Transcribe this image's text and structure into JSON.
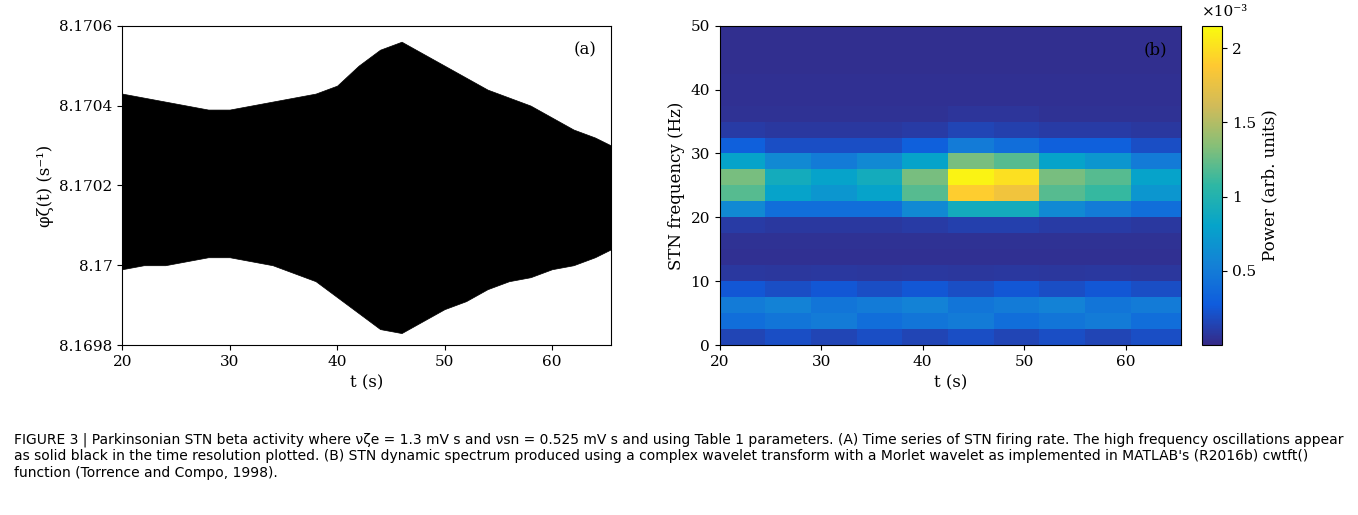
{
  "chart_data": [
    {
      "type": "area",
      "panel_label": "(a)",
      "x_label": "t (s)",
      "y_label": "φζ(t) (s⁻¹)",
      "color": "#000000",
      "x": [
        20,
        22,
        24,
        26,
        28,
        30,
        32,
        34,
        36,
        38,
        40,
        42,
        44,
        46,
        48,
        50,
        52,
        54,
        56,
        58,
        60,
        62,
        64,
        65.5
      ],
      "upper": [
        8.17043,
        8.17042,
        8.17041,
        8.1704,
        8.17039,
        8.17039,
        8.1704,
        8.17041,
        8.17042,
        8.17043,
        8.17045,
        8.1705,
        8.17054,
        8.17056,
        8.17053,
        8.1705,
        8.17047,
        8.17044,
        8.17042,
        8.1704,
        8.17037,
        8.17034,
        8.17032,
        8.1703
      ],
      "lower": [
        8.16999,
        8.17,
        8.17,
        8.17001,
        8.17002,
        8.17002,
        8.17001,
        8.17,
        8.16998,
        8.16996,
        8.16992,
        8.16988,
        8.16984,
        8.16983,
        8.16986,
        8.16989,
        8.16991,
        8.16994,
        8.16996,
        8.16997,
        8.16999,
        8.17,
        8.17002,
        8.17004
      ],
      "xlim": [
        20,
        65.5
      ],
      "xticks": [
        20,
        30,
        40,
        50,
        60
      ],
      "ylim": [
        8.1698,
        8.1706
      ],
      "yticks": [
        8.1698,
        8.17,
        8.1702,
        8.1704,
        8.1706
      ]
    },
    {
      "type": "heatmap",
      "panel_label": "(b)",
      "x_label": "t (s)",
      "y_label": "STN frequency (Hz)",
      "colorbar_label": "Power (arb. units)",
      "colorbar_multiplier": "×10⁻³",
      "time_edges": [
        20,
        24.5,
        29,
        33.5,
        38,
        42.5,
        47,
        51.5,
        56,
        60.5,
        65.5
      ],
      "freq_edges": [
        0,
        2.5,
        5,
        7.5,
        10,
        12.5,
        15,
        17.5,
        20,
        22.5,
        25,
        27.5,
        30,
        32.5,
        35,
        37.5,
        40,
        42.5,
        45,
        47.5,
        50
      ],
      "power": [
        [
          0.15,
          0.2,
          0.15,
          0.2,
          0.15,
          0.2,
          0.15,
          0.2,
          0.15,
          0.2
        ],
        [
          0.4,
          0.45,
          0.5,
          0.4,
          0.45,
          0.5,
          0.4,
          0.45,
          0.5,
          0.4
        ],
        [
          0.5,
          0.55,
          0.45,
          0.5,
          0.55,
          0.45,
          0.5,
          0.55,
          0.45,
          0.5
        ],
        [
          0.25,
          0.2,
          0.25,
          0.2,
          0.25,
          0.2,
          0.25,
          0.2,
          0.25,
          0.2
        ],
        [
          0.08,
          0.07,
          0.08,
          0.07,
          0.08,
          0.07,
          0.08,
          0.07,
          0.08,
          0.07
        ],
        [
          0.04,
          0.04,
          0.04,
          0.04,
          0.04,
          0.04,
          0.04,
          0.04,
          0.04,
          0.04
        ],
        [
          0.05,
          0.05,
          0.05,
          0.05,
          0.05,
          0.05,
          0.05,
          0.05,
          0.05,
          0.05
        ],
        [
          0.1,
          0.08,
          0.08,
          0.08,
          0.1,
          0.12,
          0.12,
          0.1,
          0.1,
          0.08
        ],
        [
          0.6,
          0.4,
          0.4,
          0.4,
          0.6,
          0.9,
          0.9,
          0.6,
          0.5,
          0.4
        ],
        [
          1.2,
          0.8,
          0.7,
          0.8,
          1.2,
          1.9,
          1.8,
          1.2,
          1.1,
          0.7
        ],
        [
          1.3,
          0.9,
          0.8,
          0.9,
          1.3,
          2.1,
          2.0,
          1.3,
          1.2,
          0.8
        ],
        [
          0.8,
          0.6,
          0.5,
          0.6,
          0.8,
          1.3,
          1.2,
          0.8,
          0.7,
          0.5
        ],
        [
          0.3,
          0.2,
          0.2,
          0.2,
          0.3,
          0.5,
          0.4,
          0.3,
          0.3,
          0.2
        ],
        [
          0.1,
          0.08,
          0.08,
          0.08,
          0.1,
          0.15,
          0.12,
          0.1,
          0.1,
          0.08
        ],
        [
          0.05,
          0.05,
          0.05,
          0.05,
          0.05,
          0.06,
          0.06,
          0.05,
          0.05,
          0.05
        ],
        [
          0.04,
          0.04,
          0.04,
          0.04,
          0.04,
          0.04,
          0.04,
          0.04,
          0.04,
          0.04
        ],
        [
          0.04,
          0.04,
          0.04,
          0.04,
          0.04,
          0.04,
          0.04,
          0.04,
          0.04,
          0.04
        ],
        [
          0.03,
          0.03,
          0.03,
          0.03,
          0.03,
          0.03,
          0.03,
          0.03,
          0.03,
          0.03
        ],
        [
          0.03,
          0.03,
          0.03,
          0.03,
          0.03,
          0.03,
          0.03,
          0.03,
          0.03,
          0.03
        ],
        [
          0.03,
          0.03,
          0.03,
          0.03,
          0.03,
          0.03,
          0.03,
          0.03,
          0.03,
          0.03
        ]
      ],
      "color_range": [
        0,
        2.15
      ],
      "color_ticks": [
        0.5,
        1,
        1.5,
        2
      ],
      "xlim": [
        20,
        65.5
      ],
      "xticks": [
        20,
        30,
        40,
        50,
        60
      ],
      "ylim": [
        0,
        50
      ],
      "yticks": [
        0,
        10,
        20,
        30,
        40,
        50
      ]
    }
  ],
  "caption": "FIGURE 3 | Parkinsonian STN beta activity where νζe = 1.3 mV s and νsn = 0.525 mV s and using Table 1 parameters. (A) Time series of STN firing rate. The high frequency oscillations appear as solid black in the time resolution plotted. (B) STN dynamic spectrum produced using a complex wavelet transform with a Morlet wavelet as implemented in MATLAB's (R2016b) cwtft() function (Torrence and Compo, 1998)."
}
